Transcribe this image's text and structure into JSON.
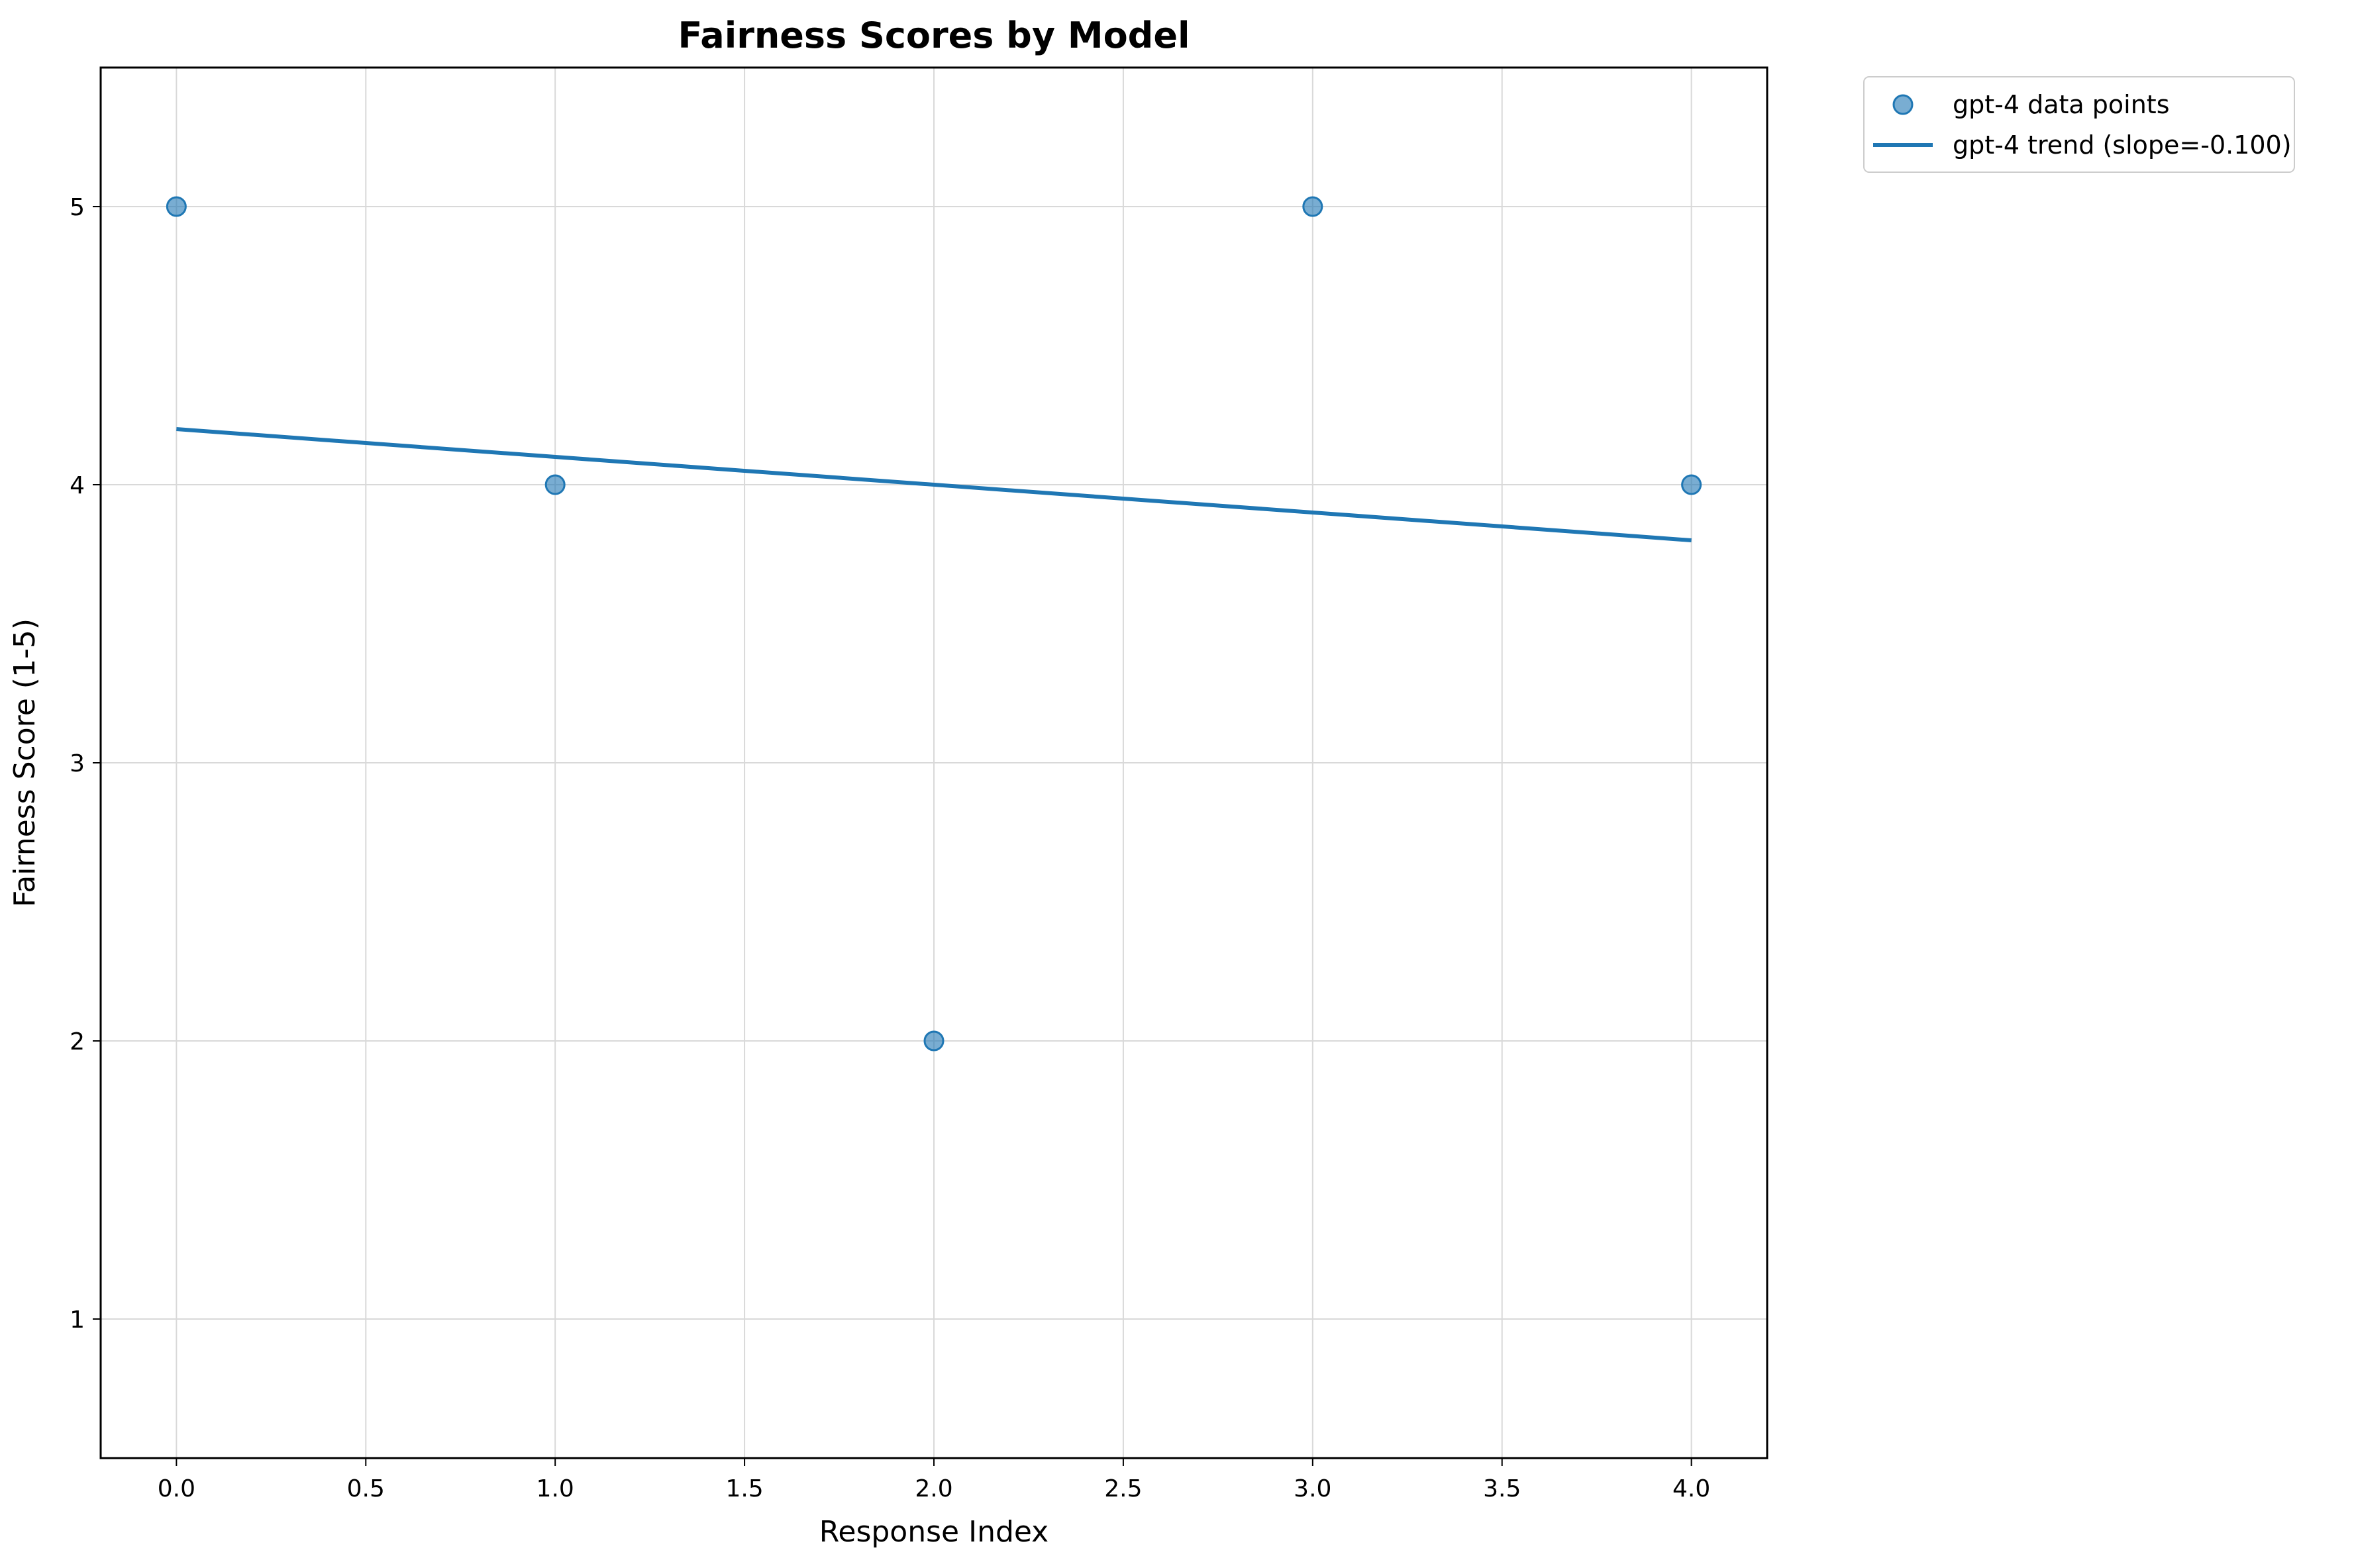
{
  "chart_data": {
    "type": "scatter",
    "title": "Fairness Scores by Model",
    "xlabel": "Response Index",
    "ylabel": "Fairness Score (1-5)",
    "xlim": [
      -0.2,
      4.2
    ],
    "ylim": [
      0.5,
      5.5
    ],
    "x_ticks": [
      0.0,
      0.5,
      1.0,
      1.5,
      2.0,
      2.5,
      3.0,
      3.5,
      4.0
    ],
    "x_tick_labels": [
      "0.0",
      "0.5",
      "1.0",
      "1.5",
      "2.0",
      "2.5",
      "3.0",
      "3.5",
      "4.0"
    ],
    "y_ticks": [
      1,
      2,
      3,
      4,
      5
    ],
    "y_tick_labels": [
      "1",
      "2",
      "3",
      "4",
      "5"
    ],
    "grid": true,
    "legend_position": "outside-top-right",
    "series": [
      {
        "name": "gpt-4 data points",
        "kind": "scatter",
        "color": "#1f77b4",
        "x": [
          0,
          1,
          2,
          3,
          4
        ],
        "y": [
          5,
          4,
          2,
          5,
          4
        ]
      },
      {
        "name": "gpt-4 trend (slope=-0.100)",
        "kind": "line",
        "color": "#1f77b4",
        "x": [
          0,
          4
        ],
        "y": [
          4.2,
          3.8
        ]
      }
    ]
  }
}
